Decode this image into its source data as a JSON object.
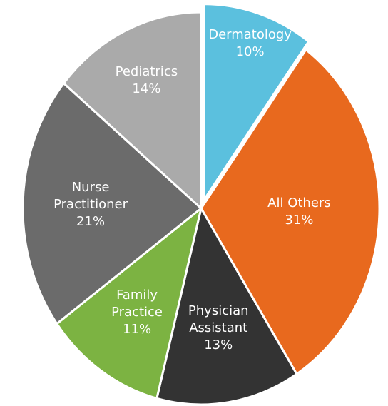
{
  "chart_data": {
    "type": "pie",
    "categories": [
      "Dermatology",
      "All Others",
      "Physician Assistant",
      "Family Practice",
      "Nurse Practitioner",
      "Pediatrics"
    ],
    "values": [
      10,
      31,
      13,
      11,
      21,
      14
    ],
    "value_labels": [
      "10%",
      "31%",
      "13%",
      "11%",
      "21%",
      "14%"
    ],
    "colors": [
      "#5bc0de",
      "#e8691e",
      "#333333",
      "#7cb342",
      "#6b6b6b",
      "#aaaaaa"
    ],
    "exploded": [
      "Dermatology"
    ]
  }
}
